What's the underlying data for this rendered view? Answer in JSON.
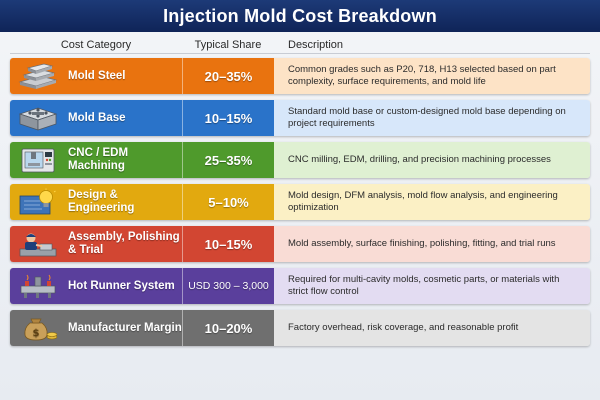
{
  "title": "Injection Mold Cost Breakdown",
  "headers": {
    "category": "Cost Category",
    "share": "Typical Share",
    "description": "Description"
  },
  "rows": [
    {
      "category": "Mold Steel",
      "share": "20–35%",
      "description": "Common grades such as P20, 718, H13 selected based on part complexity, surface requirements, and mold life",
      "icon": "steel-bars-icon",
      "colors": {
        "main": "#e9730f",
        "light": "#fde3c6"
      }
    },
    {
      "category": "Mold Base",
      "share": "10–15%",
      "description": "Standard mold base or custom-designed mold base depending on project requirements",
      "icon": "mold-base-icon",
      "colors": {
        "main": "#2a73c9",
        "light": "#d7e7fa"
      }
    },
    {
      "category": "CNC / EDM Machining",
      "share": "25–35%",
      "description": "CNC milling, EDM, drilling, and precision machining processes",
      "icon": "cnc-machine-icon",
      "colors": {
        "main": "#4f9a2c",
        "light": "#dff0d2"
      }
    },
    {
      "category": "Design & Engineering",
      "share": "5–10%",
      "description": "Mold design, DFM analysis, mold flow analysis, and engineering optimization",
      "icon": "lightbulb-blueprint-icon",
      "colors": {
        "main": "#e2a90f",
        "light": "#fbf0c5"
      }
    },
    {
      "category": "Assembly, Polishing & Trial",
      "share": "10–15%",
      "description": "Mold assembly, surface finishing, polishing, fitting, and trial runs",
      "icon": "worker-icon",
      "colors": {
        "main": "#d24632",
        "light": "#f9dcd5"
      }
    },
    {
      "category": "Hot Runner System",
      "share": "USD 300 – 3,000",
      "description": "Required for multi-cavity molds, cosmetic parts, or materials with strict flow control",
      "icon": "hot-runner-icon",
      "colors": {
        "main": "#5a3f9c",
        "light": "#e3dcf2"
      }
    },
    {
      "category": "Manufacturer Margin",
      "share": "10–20%",
      "description": "Factory overhead, risk coverage, and reasonable profit",
      "icon": "money-bag-icon",
      "colors": {
        "main": "#6f6f6f",
        "light": "#e4e4e4"
      }
    }
  ]
}
